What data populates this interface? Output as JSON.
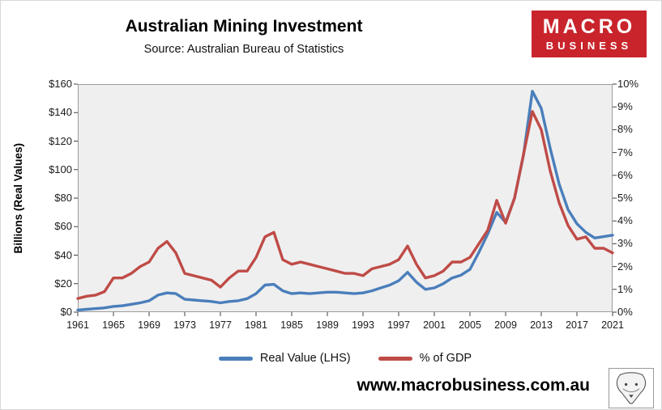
{
  "header": {
    "title": "Australian Mining Investment",
    "subtitle": "Source: Australian Bureau of Statistics",
    "logo": {
      "line1": "MACRO",
      "line2": "BUSINESS",
      "bg_color": "#c9242b"
    }
  },
  "chart_data": {
    "type": "line",
    "title": "Australian Mining Investment",
    "grid": false,
    "plot_bg": "#efefef",
    "legend_position": "bottom",
    "x": [
      1961,
      1962,
      1963,
      1964,
      1965,
      1966,
      1967,
      1968,
      1969,
      1970,
      1971,
      1972,
      1973,
      1974,
      1975,
      1976,
      1977,
      1978,
      1979,
      1980,
      1981,
      1982,
      1983,
      1984,
      1985,
      1986,
      1987,
      1988,
      1989,
      1990,
      1991,
      1992,
      1993,
      1994,
      1995,
      1996,
      1997,
      1998,
      1999,
      2000,
      2001,
      2002,
      2003,
      2004,
      2005,
      2006,
      2007,
      2008,
      2009,
      2010,
      2011,
      2012,
      2013,
      2014,
      2015,
      2016,
      2017,
      2018,
      2019,
      2020,
      2021
    ],
    "x_ticks": [
      1961,
      1965,
      1969,
      1973,
      1977,
      1981,
      1985,
      1989,
      1993,
      1997,
      2001,
      2005,
      2009,
      2013,
      2017,
      2021
    ],
    "left_axis": {
      "label": "Billions (Real Values)",
      "min": 0,
      "max": 160,
      "ticks": [
        "$0",
        "$20",
        "$40",
        "$60",
        "$80",
        "$100",
        "$120",
        "$140",
        "$160"
      ]
    },
    "right_axis": {
      "min": 0,
      "max": 10,
      "ticks": [
        "0%",
        "1%",
        "2%",
        "3%",
        "4%",
        "5%",
        "6%",
        "7%",
        "8%",
        "9%",
        "10%"
      ]
    },
    "series": [
      {
        "id": "real-value-lhs",
        "name": "Real Value (LHS)",
        "axis": "left",
        "color": "#4a7ebb",
        "values": [
          1.5,
          2,
          2.5,
          3,
          4,
          4.5,
          5.5,
          6.5,
          8,
          12,
          13.5,
          13,
          9,
          8.5,
          8,
          7.5,
          6.5,
          7.5,
          8,
          9.5,
          13,
          19,
          19.5,
          15,
          13,
          13.5,
          13,
          13.5,
          14,
          14,
          13.5,
          13,
          13.5,
          15,
          17,
          19,
          22,
          28,
          21,
          16,
          17,
          20,
          24,
          26,
          30,
          42,
          55,
          70,
          63,
          80,
          110,
          155,
          143,
          115,
          90,
          72,
          62,
          56,
          52,
          53,
          54
        ]
      },
      {
        "id": "pct-of-gdp",
        "name": "% of GDP",
        "axis": "right",
        "color": "#bf4b47",
        "values": [
          0.6,
          0.7,
          0.75,
          0.9,
          1.5,
          1.5,
          1.7,
          2.0,
          2.2,
          2.8,
          3.1,
          2.6,
          1.7,
          1.6,
          1.5,
          1.4,
          1.1,
          1.5,
          1.8,
          1.8,
          2.4,
          3.3,
          3.5,
          2.3,
          2.1,
          2.2,
          2.1,
          2.0,
          1.9,
          1.8,
          1.7,
          1.7,
          1.6,
          1.9,
          2.0,
          2.1,
          2.3,
          2.9,
          2.1,
          1.5,
          1.6,
          1.8,
          2.2,
          2.2,
          2.4,
          3.0,
          3.6,
          4.9,
          3.9,
          5.0,
          6.9,
          8.8,
          8.0,
          6.2,
          4.8,
          3.8,
          3.2,
          3.3,
          2.8,
          2.8,
          2.6
        ]
      }
    ]
  },
  "footer": {
    "website": "www.macrobusiness.com.au",
    "wolf_logo": "wolf-sketch-logo"
  }
}
